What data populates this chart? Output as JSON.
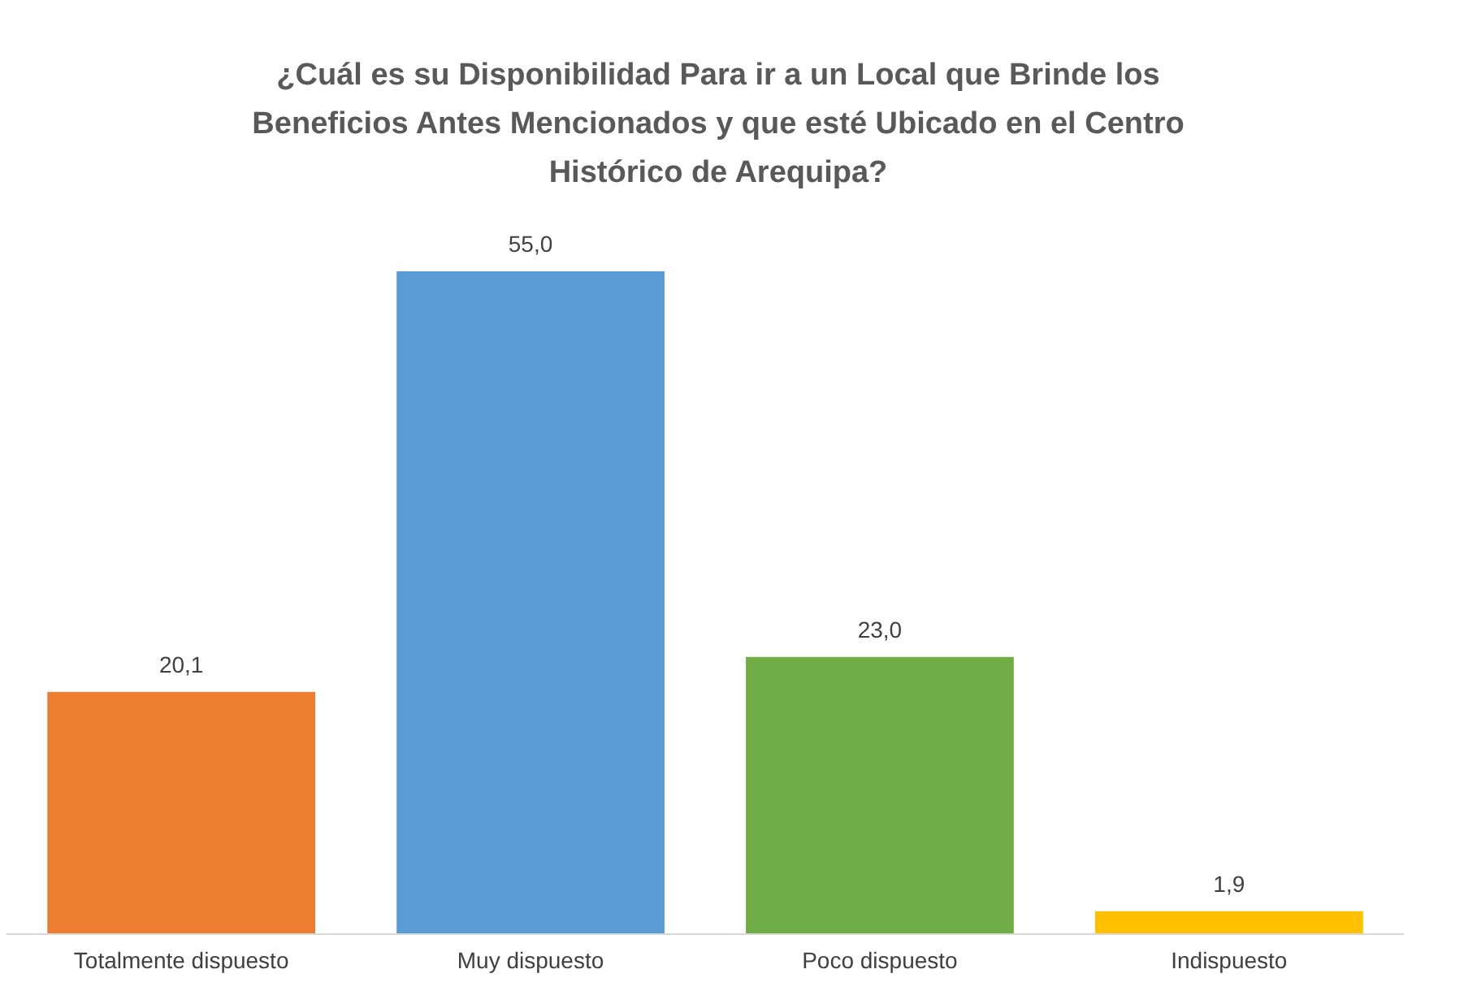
{
  "chart_data": {
    "type": "bar",
    "title": "¿Cuál es su Disponibilidad  Para ir a un Local que Brinde los Beneficios Antes Mencionados  y que esté Ubicado en el Centro Histórico de Arequipa?",
    "categories": [
      "Totalmente dispuesto",
      "Muy dispuesto",
      "Poco dispuesto",
      "Indispuesto"
    ],
    "values": [
      20.1,
      55.0,
      23.0,
      1.9
    ],
    "value_labels": [
      "20,1",
      "55,0",
      "23,0",
      "1,9"
    ],
    "colors": [
      "#ed7d31",
      "#5b9bd5",
      "#70ad47",
      "#ffc000"
    ]
  }
}
